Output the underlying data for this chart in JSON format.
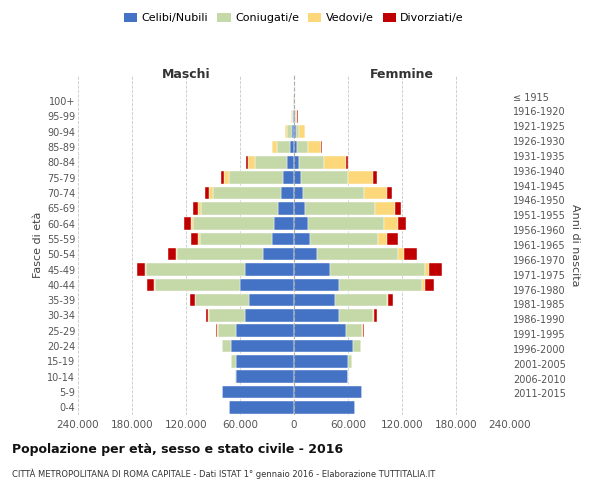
{
  "age_groups": [
    "0-4",
    "5-9",
    "10-14",
    "15-19",
    "20-24",
    "25-29",
    "30-34",
    "35-39",
    "40-44",
    "45-49",
    "50-54",
    "55-59",
    "60-64",
    "65-69",
    "70-74",
    "75-79",
    "80-84",
    "85-89",
    "90-94",
    "95-99",
    "100+"
  ],
  "birth_years": [
    "2011-2015",
    "2006-2010",
    "2001-2005",
    "1996-2000",
    "1991-1995",
    "1986-1990",
    "1981-1985",
    "1976-1980",
    "1971-1975",
    "1966-1970",
    "1961-1965",
    "1956-1960",
    "1951-1955",
    "1946-1950",
    "1941-1945",
    "1936-1940",
    "1931-1935",
    "1926-1930",
    "1921-1925",
    "1916-1920",
    "≤ 1915"
  ],
  "males": {
    "celibi": [
      72000,
      80000,
      65000,
      65000,
      70000,
      65000,
      55000,
      50000,
      60000,
      55000,
      35000,
      25000,
      22000,
      18000,
      15000,
      12000,
      8000,
      4000,
      2500,
      1200,
      500
    ],
    "coniugati": [
      200,
      500,
      500,
      5000,
      10000,
      20000,
      40000,
      60000,
      95000,
      110000,
      95000,
      80000,
      90000,
      85000,
      75000,
      60000,
      35000,
      15000,
      5000,
      1500,
      300
    ],
    "vedovi": [
      10,
      10,
      10,
      20,
      50,
      100,
      200,
      300,
      800,
      1000,
      1500,
      2000,
      3000,
      4000,
      5000,
      6000,
      8000,
      5000,
      2000,
      500,
      100
    ],
    "divorziati": [
      10,
      20,
      50,
      200,
      500,
      1500,
      3000,
      5000,
      8000,
      9000,
      8000,
      7000,
      7000,
      5000,
      4000,
      3000,
      2000,
      1000,
      500,
      200,
      100
    ]
  },
  "females": {
    "nubili": [
      68000,
      75000,
      60000,
      60000,
      65000,
      58000,
      50000,
      45000,
      50000,
      40000,
      25000,
      18000,
      15000,
      12000,
      10000,
      8000,
      5000,
      3000,
      2000,
      1000,
      400
    ],
    "coniugate": [
      150,
      300,
      400,
      4000,
      9000,
      18000,
      38000,
      58000,
      92000,
      105000,
      90000,
      75000,
      85000,
      78000,
      68000,
      52000,
      28000,
      12000,
      4000,
      1200,
      300
    ],
    "vedove": [
      10,
      10,
      20,
      50,
      150,
      400,
      800,
      1500,
      3000,
      5000,
      7000,
      10000,
      15000,
      22000,
      25000,
      28000,
      25000,
      15000,
      6000,
      1500,
      200
    ],
    "divorziate": [
      10,
      20,
      50,
      200,
      600,
      1800,
      3500,
      6000,
      10000,
      14000,
      15000,
      12000,
      9000,
      7000,
      5500,
      4000,
      2500,
      1200,
      600,
      200,
      100
    ]
  },
  "colors": {
    "celibi": "#4472c4",
    "coniugati": "#c5d9a8",
    "vedovi": "#fcd87a",
    "divorziati": "#c00000"
  },
  "xlim": 240000,
  "xticks": [
    -240000,
    -180000,
    -120000,
    -60000,
    0,
    60000,
    120000,
    180000,
    240000
  ],
  "xtick_labels": [
    "240.000",
    "180.000",
    "120.000",
    "60.000",
    "0",
    "60.000",
    "120.000",
    "180.000",
    "240.000"
  ],
  "title": "Popolazione per età, sesso e stato civile - 2016",
  "subtitle": "CITTÀ METROPOLITANA DI ROMA CAPITALE - Dati ISTAT 1° gennaio 2016 - Elaborazione TUTTITALIA.IT",
  "background_color": "#ffffff",
  "grid_color": "#c8c8c8"
}
